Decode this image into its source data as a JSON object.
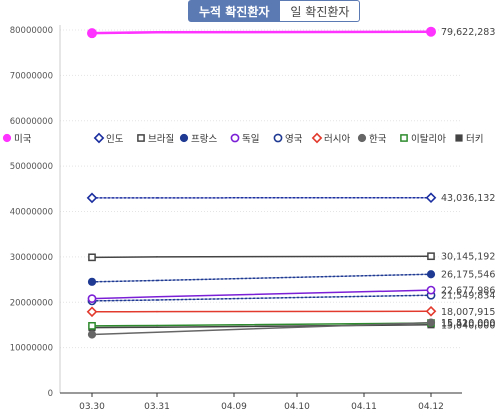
{
  "tabs": [
    {
      "label": "누적 확진환자",
      "active": true
    },
    {
      "label": "일 확진환자",
      "active": false
    }
  ],
  "chart_data": {
    "type": "line",
    "categories": [
      "03.30",
      "03.31",
      "04.09",
      "04.10",
      "04.11",
      "04.12"
    ],
    "ylim": [
      0,
      80000000
    ],
    "yticks": [
      0,
      10000000,
      20000000,
      30000000,
      40000000,
      50000000,
      60000000,
      70000000,
      80000000
    ],
    "ytick_labels": [
      "0",
      "10000000",
      "20000000",
      "30000000",
      "40000000",
      "50000000",
      "60000000",
      "70000000",
      "80000000"
    ],
    "grid": true,
    "legend_position": "middle-left",
    "series": [
      {
        "name": "미국",
        "color": "#ff33ff",
        "marker": "circle-filled",
        "dash": "solid",
        "width": 2.5,
        "values": [
          79300000,
          79500000,
          null,
          null,
          null,
          79622283
        ],
        "end_label": "79,622,283"
      },
      {
        "name": "인도",
        "color": "#1c2fa0",
        "marker": "diamond-open",
        "dash": "dotted",
        "width": 1.5,
        "values": [
          43000000,
          43010000,
          null,
          null,
          null,
          43036132
        ],
        "end_label": "43,036,132"
      },
      {
        "name": "브라질",
        "color": "#444444",
        "marker": "square-open",
        "dash": "solid",
        "width": 1.5,
        "values": [
          29900000,
          30000000,
          null,
          null,
          null,
          30145192
        ],
        "end_label": "30,145,192"
      },
      {
        "name": "프랑스",
        "color": "#1f3a93",
        "marker": "circle-filled",
        "dash": "dotted",
        "width": 1.5,
        "values": [
          24500000,
          24800000,
          null,
          null,
          null,
          26175546
        ],
        "end_label": "26,175,546"
      },
      {
        "name": "독일",
        "color": "#7b1fd6",
        "marker": "circle-open",
        "dash": "solid",
        "width": 1.5,
        "values": [
          20800000,
          21200000,
          null,
          null,
          null,
          22677986
        ],
        "end_label": "22,677,986"
      },
      {
        "name": "영국",
        "color": "#1f3a93",
        "marker": "circle-open",
        "dash": "dotted",
        "width": 1.5,
        "values": [
          20300000,
          20500000,
          null,
          null,
          null,
          21549834
        ],
        "end_label": "21,549,834"
      },
      {
        "name": "러시아",
        "color": "#e23b2e",
        "marker": "diamond-open",
        "dash": "solid",
        "width": 1.5,
        "values": [
          17900000,
          17930000,
          null,
          null,
          null,
          18007915
        ],
        "end_label": "18,007,915"
      },
      {
        "name": "한국",
        "color": "#666666",
        "marker": "circle-filled",
        "dash": "solid",
        "width": 1.5,
        "values": [
          12900000,
          13400000,
          null,
          null,
          null,
          15510000
        ],
        "end_label": "15,510,000"
      },
      {
        "name": "이탈리아",
        "color": "#2e8b2e",
        "marker": "square-open",
        "dash": "solid",
        "width": 1.5,
        "values": [
          14800000,
          14880000,
          null,
          null,
          null,
          15420000
        ],
        "end_label": "15,420,000"
      },
      {
        "name": "터키",
        "color": "#444444",
        "marker": "square-filled",
        "dash": "solid",
        "width": 1.5,
        "values": [
          14400000,
          14500000,
          null,
          null,
          null,
          15040000
        ],
        "end_label": "15,040,000"
      }
    ]
  }
}
